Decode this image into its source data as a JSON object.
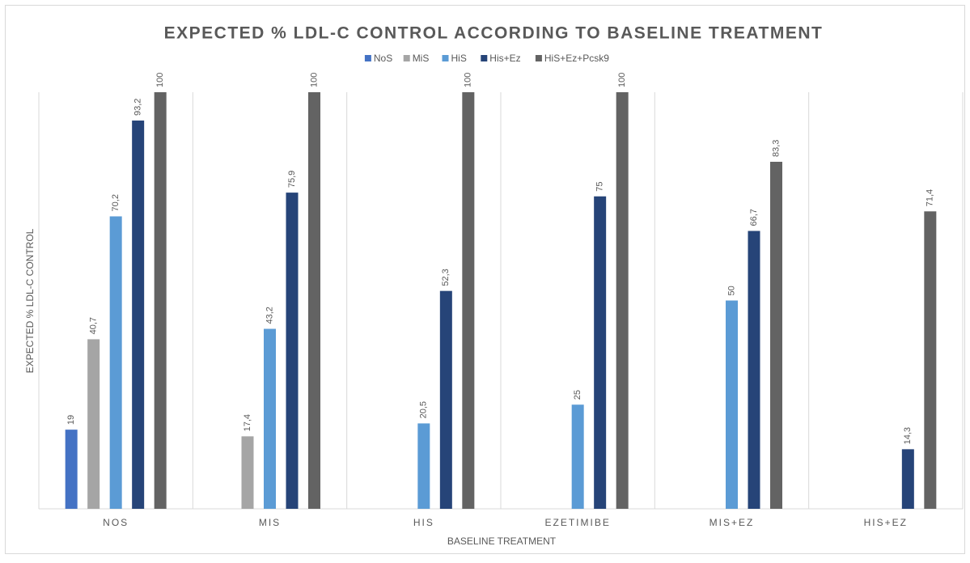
{
  "chart_data": {
    "type": "bar",
    "title": "EXPECTED % LDL-C CONTROL ACCORDING TO BASELINE TREATMENT",
    "x_label": "BASELINE TREATMENT",
    "y_label": "EXPECTED % LDL-C CONTROL",
    "categories": [
      "NOS",
      "MIS",
      "HIS",
      "EZETIMIBE",
      "MIS+EZ",
      "HIS+EZ"
    ],
    "ylim": [
      0,
      100
    ],
    "legend": "top",
    "series": [
      {
        "name": "NoS",
        "color": "#4472c4",
        "values": [
          19,
          null,
          null,
          null,
          null,
          null
        ],
        "value_labels": [
          "19",
          null,
          null,
          null,
          null,
          null
        ]
      },
      {
        "name": "MiS",
        "color": "#a5a5a5",
        "values": [
          40.7,
          17.4,
          null,
          null,
          null,
          null
        ],
        "value_labels": [
          "40,7",
          "17,4",
          null,
          null,
          null,
          null
        ]
      },
      {
        "name": "HiS",
        "color": "#5b9bd5",
        "values": [
          70.2,
          43.2,
          20.5,
          25,
          50,
          null
        ],
        "value_labels": [
          "70,2",
          "43,2",
          "20,5",
          "25",
          "50",
          null
        ]
      },
      {
        "name": "His+Ez",
        "color": "#264478",
        "values": [
          93.2,
          75.9,
          52.3,
          75,
          66.7,
          14.3
        ],
        "value_labels": [
          "93,2",
          "75,9",
          "52,3",
          "75",
          "66,7",
          "14,3"
        ]
      },
      {
        "name": "HiS+Ez+Pcsk9",
        "color": "#636363",
        "values": [
          100,
          100,
          100,
          100,
          83.3,
          71.4
        ],
        "value_labels": [
          "100",
          "100",
          "100",
          "100",
          "83,3",
          "71,4"
        ]
      }
    ]
  }
}
